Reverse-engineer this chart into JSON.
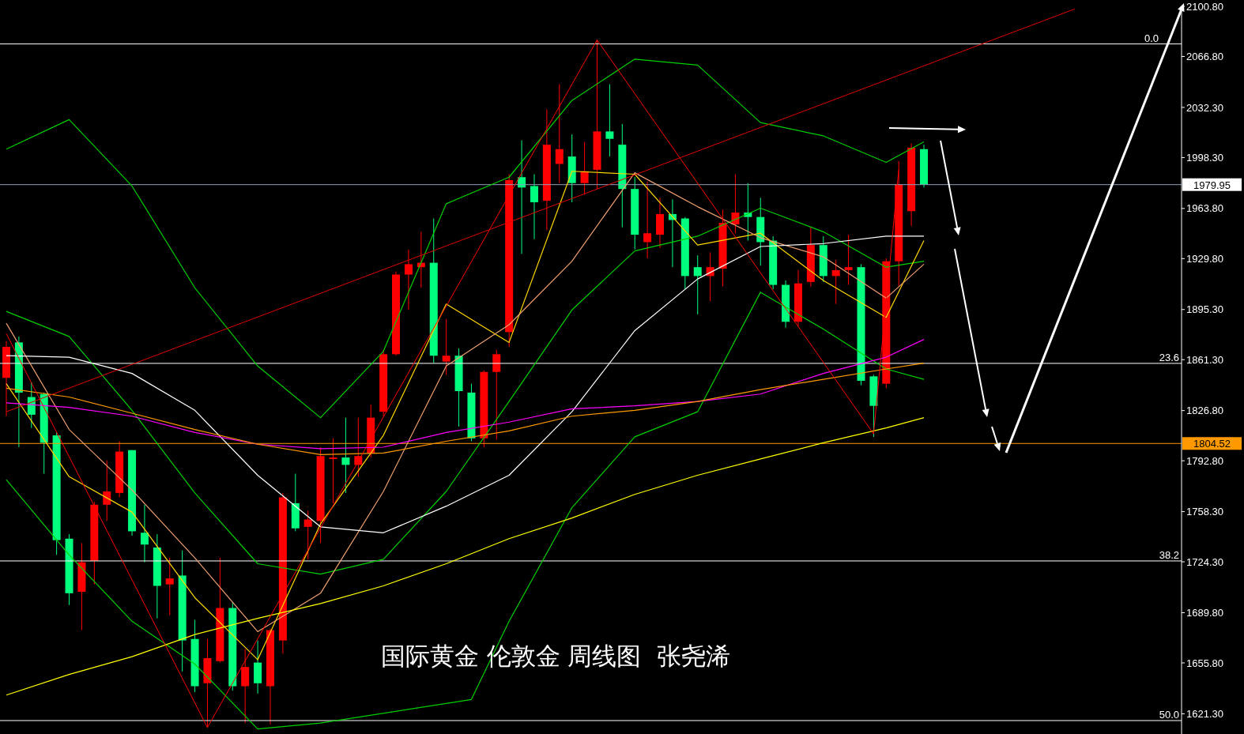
{
  "chart_data": {
    "type": "candlestick",
    "title": "国际黄金 伦敦金 周线图  张尧浠",
    "categories": [
      null,
      null,
      null,
      null,
      null,
      null,
      null,
      null,
      null,
      null,
      null,
      null,
      null,
      null,
      null,
      null,
      null,
      null,
      null,
      null,
      null,
      null,
      null,
      null,
      null,
      null,
      null,
      null,
      null,
      null,
      null,
      null,
      null,
      null,
      null,
      null,
      null,
      null,
      null,
      null,
      null,
      null,
      null,
      null,
      null,
      null,
      null,
      null,
      null,
      null,
      null,
      null,
      null,
      null,
      null,
      null,
      null,
      null,
      null,
      null,
      null,
      null,
      null,
      null,
      null,
      null,
      null,
      null,
      null,
      null,
      null,
      null,
      null,
      null,
      null,
      null,
      null,
      null,
      null,
      null,
      null,
      null,
      null,
      null,
      null,
      null,
      null,
      null,
      null,
      null,
      null,
      null,
      null,
      null
    ],
    "ohlc": [
      [
        1849,
        1874,
        1823,
        1870
      ],
      [
        1873,
        1877,
        1802,
        1839
      ],
      [
        1836,
        1846,
        1815,
        1824
      ],
      [
        1838,
        1839,
        1784,
        1805
      ],
      [
        1810,
        1812,
        1729,
        1739
      ],
      [
        1740,
        1743,
        1695,
        1703
      ],
      [
        1704,
        1737,
        1678,
        1724
      ],
      [
        1725,
        1765,
        1709,
        1763
      ],
      [
        1763,
        1793,
        1752,
        1772
      ],
      [
        1771,
        1806,
        1768,
        1799
      ],
      [
        1800,
        1800,
        1742,
        1745
      ],
      [
        1744,
        1763,
        1724,
        1736
      ],
      [
        1734,
        1743,
        1686,
        1708
      ],
      [
        1709,
        1727,
        1688,
        1713
      ],
      [
        1715,
        1732,
        1650,
        1671
      ],
      [
        1672,
        1685,
        1636,
        1640
      ],
      [
        1642,
        1672,
        1612,
        1659
      ],
      [
        1657,
        1727,
        1656,
        1693
      ],
      [
        1693,
        1697,
        1637,
        1640
      ],
      [
        1640,
        1665,
        1615,
        1653
      ],
      [
        1656,
        1671,
        1635,
        1642
      ],
      [
        1640,
        1679,
        1614,
        1678
      ],
      [
        1671,
        1771,
        1662,
        1768
      ],
      [
        1764,
        1784,
        1745,
        1747
      ],
      [
        1748,
        1759,
        1726,
        1753
      ],
      [
        1752,
        1802,
        1737,
        1796
      ],
      [
        1794,
        1808,
        1764,
        1795
      ],
      [
        1795,
        1822,
        1771,
        1790
      ],
      [
        1790,
        1822,
        1782,
        1796
      ],
      [
        1798,
        1831,
        1795,
        1822
      ],
      [
        1826,
        1868,
        1823,
        1865
      ],
      [
        1865,
        1921,
        1864,
        1919
      ],
      [
        1919,
        1936,
        1895,
        1926
      ],
      [
        1924,
        1948,
        1910,
        1927
      ],
      [
        1927,
        1957,
        1859,
        1864
      ],
      [
        1860,
        1889,
        1851,
        1864
      ],
      [
        1864,
        1869,
        1816,
        1840
      ],
      [
        1839,
        1845,
        1806,
        1808
      ],
      [
        1808,
        1854,
        1802,
        1853
      ],
      [
        1853,
        1868,
        1807,
        1865
      ],
      [
        1880,
        1987,
        1870,
        1983
      ],
      [
        1985,
        2010,
        1933,
        1978
      ],
      [
        1979,
        1987,
        1943,
        1968
      ],
      [
        1969,
        2031,
        1949,
        2007
      ],
      [
        1994,
        2048,
        1981,
        2004
      ],
      [
        1999,
        2014,
        1968,
        1981
      ],
      [
        1981,
        2009,
        1973,
        1989
      ],
      [
        1990,
        2078,
        1977,
        2016
      ],
      [
        2016,
        2048,
        1999,
        2011
      ],
      [
        2007,
        2021,
        1951,
        1977
      ],
      [
        1977,
        1985,
        1936,
        1946
      ],
      [
        1941,
        1982,
        1930,
        1947
      ],
      [
        1946,
        1971,
        1937,
        1960
      ],
      [
        1960,
        1970,
        1924,
        1956
      ],
      [
        1957,
        1958,
        1909,
        1918
      ],
      [
        1924,
        1932,
        1892,
        1918
      ],
      [
        1918,
        1934,
        1901,
        1924
      ],
      [
        1923,
        1963,
        1911,
        1954
      ],
      [
        1953,
        1987,
        1947,
        1961
      ],
      [
        1961,
        1981,
        1942,
        1958
      ],
      [
        1958,
        1971,
        1925,
        1941
      ],
      [
        1942,
        1945,
        1909,
        1912
      ],
      [
        1912,
        1915,
        1883,
        1887
      ],
      [
        1887,
        1922,
        1884,
        1913
      ],
      [
        1914,
        1951,
        1911,
        1939
      ],
      [
        1939,
        1945,
        1914,
        1918
      ],
      [
        1918,
        1929,
        1899,
        1922
      ],
      [
        1922,
        1946,
        1912,
        1924
      ],
      [
        1924,
        1926,
        1844,
        1847
      ],
      [
        1850,
        1851,
        1809,
        1830
      ],
      [
        1845,
        1930,
        1842,
        1928
      ],
      [
        1928,
        1996,
        1911,
        1980
      ],
      [
        1962,
        2008,
        1952,
        2005
      ],
      [
        2004,
        2007,
        1978,
        1980
      ],
      null,
      null,
      null,
      null,
      null,
      null,
      null,
      null,
      null,
      null,
      null,
      null,
      null,
      null,
      null,
      null,
      null,
      null,
      null,
      null
    ],
    "colors": [
      "#ff0000",
      "#00ff7f",
      "#00ff7f",
      "#00ff7f",
      "#00ff7f",
      "#00ff7f",
      "#ff0000",
      "#ff0000",
      "#ff0000",
      "#ff0000",
      "#00ff7f",
      "#00ff7f",
      "#00ff7f",
      "#ff0000",
      "#00ff7f",
      "#00ff7f",
      "#ff0000",
      "#ff0000",
      "#00ff7f",
      "#ff0000",
      "#00ff7f",
      "#ff0000",
      "#ff0000",
      "#00ff7f",
      "#ff0000",
      "#ff0000",
      "#ff0000",
      "#00ff7f",
      "#ff0000",
      "#ff0000",
      "#ff0000",
      "#ff0000",
      "#ff0000",
      "#ff0000",
      "#00ff7f",
      "#ff0000",
      "#00ff7f",
      "#00ff7f",
      "#ff0000",
      "#ff0000",
      "#ff0000",
      "#00ff7f",
      "#00ff7f",
      "#ff0000",
      "#ff0000",
      "#00ff7f",
      "#ff0000",
      "#ff0000",
      "#00ff7f",
      "#00ff7f",
      "#00ff7f",
      "#ff0000",
      "#ff0000",
      "#00ff7f",
      "#00ff7f",
      "#00ff7f",
      "#ff0000",
      "#ff0000",
      "#ff0000",
      "#00ff7f",
      "#00ff7f",
      "#00ff7f",
      "#00ff7f",
      "#ff0000",
      "#ff0000",
      "#00ff7f",
      "#ff0000",
      "#ff0000",
      "#00ff7f",
      "#00ff7f",
      "#ff0000",
      "#ff0000",
      "#ff0000",
      "#00ff7f",
      null,
      null,
      null,
      null,
      null,
      null,
      null,
      null,
      null,
      null,
      null,
      null,
      null,
      null,
      null,
      null,
      null,
      null,
      null,
      null
    ],
    "series": [
      {
        "type": "line",
        "color": "#00d000",
        "values": [
          2004,
          null,
          null,
          null,
          null,
          2024,
          null,
          null,
          null,
          null,
          1979,
          null,
          null,
          null,
          null,
          1910,
          null,
          null,
          null,
          null,
          1857,
          null,
          null,
          null,
          null,
          1822,
          null,
          null,
          null,
          null,
          1867,
          null,
          null,
          null,
          null,
          1967,
          null,
          null,
          null,
          null,
          1985,
          null,
          null,
          null,
          null,
          2037,
          null,
          null,
          null,
          null,
          2065,
          null,
          null,
          null,
          null,
          2061,
          null,
          null,
          null,
          null,
          2022,
          null,
          null,
          null,
          null,
          2013,
          null,
          null,
          null,
          null,
          1995,
          null,
          null,
          2009,
          null,
          null,
          null,
          null,
          null,
          null,
          null,
          null,
          null,
          null,
          null,
          null,
          null,
          null,
          null,
          null,
          null,
          null,
          null,
          null
        ]
      },
      {
        "type": "line",
        "color": "#00d000",
        "values": [
          1894,
          null,
          null,
          null,
          null,
          1877,
          null,
          null,
          null,
          null,
          1827,
          null,
          null,
          null,
          null,
          1771,
          null,
          null,
          null,
          null,
          1723,
          null,
          null,
          null,
          null,
          1716,
          null,
          null,
          null,
          null,
          1726,
          null,
          null,
          null,
          null,
          1772,
          null,
          null,
          null,
          null,
          1833,
          null,
          null,
          null,
          null,
          1895,
          null,
          null,
          null,
          null,
          1935,
          null,
          null,
          null,
          null,
          1945,
          null,
          null,
          null,
          null,
          1964,
          null,
          null,
          null,
          null,
          1948,
          null,
          null,
          null,
          null,
          1924,
          null,
          null,
          1928,
          null,
          null,
          null,
          null,
          null,
          null,
          null,
          null,
          null,
          null,
          null,
          null,
          null,
          null,
          null,
          null,
          null,
          null,
          null,
          null
        ]
      },
      {
        "type": "line",
        "color": "#00d000",
        "values": [
          1780,
          null,
          null,
          null,
          null,
          1729,
          null,
          null,
          null,
          null,
          1684,
          null,
          null,
          null,
          null,
          1655,
          null,
          null,
          null,
          null,
          1611,
          null,
          null,
          null,
          null,
          1615,
          null,
          null,
          null,
          null,
          null,
          null,
          null,
          null,
          null,
          null,
          null,
          1631,
          null,
          null,
          1684,
          null,
          null,
          null,
          null,
          1761,
          null,
          null,
          null,
          null,
          1809,
          null,
          null,
          null,
          null,
          1826,
          null,
          null,
          null,
          null,
          1907,
          null,
          null,
          null,
          null,
          1882,
          null,
          null,
          null,
          null,
          1855,
          null,
          null,
          1848,
          null,
          null,
          null,
          null,
          null,
          null,
          null,
          null,
          null,
          null,
          null,
          null,
          null,
          null,
          null,
          null,
          null,
          null,
          null,
          null
        ]
      },
      {
        "type": "line",
        "color": "#ffd700",
        "values": [
          1845,
          null,
          null,
          null,
          null,
          1782,
          null,
          null,
          null,
          null,
          1758,
          null,
          null,
          null,
          null,
          1700,
          null,
          null,
          null,
          null,
          1658,
          null,
          null,
          null,
          null,
          1750,
          null,
          null,
          null,
          null,
          1810,
          null,
          null,
          null,
          null,
          1899,
          null,
          null,
          null,
          null,
          1873,
          null,
          null,
          null,
          null,
          1989,
          null,
          null,
          null,
          null,
          1987,
          null,
          null,
          null,
          null,
          1939,
          null,
          null,
          null,
          null,
          1947,
          null,
          null,
          null,
          null,
          1915,
          null,
          null,
          null,
          null,
          1890,
          null,
          null,
          1942,
          null,
          null,
          null,
          null,
          null,
          null,
          null,
          null,
          null,
          null,
          null,
          null,
          null,
          null,
          null,
          null,
          null,
          null,
          null,
          null
        ]
      },
      {
        "type": "line",
        "color": "#f0a070",
        "values": [
          1886,
          null,
          null,
          null,
          null,
          1814,
          null,
          null,
          null,
          null,
          1773,
          null,
          null,
          null,
          null,
          1727,
          null,
          null,
          null,
          null,
          1677,
          null,
          null,
          null,
          null,
          1703,
          null,
          null,
          null,
          null,
          1772,
          null,
          null,
          null,
          null,
          1857,
          null,
          null,
          null,
          null,
          1885,
          null,
          null,
          null,
          null,
          1928,
          null,
          null,
          null,
          null,
          1988,
          null,
          null,
          null,
          null,
          1965,
          null,
          null,
          null,
          null,
          1944,
          null,
          null,
          null,
          null,
          1931,
          null,
          null,
          null,
          null,
          1903,
          null,
          null,
          1926,
          null,
          null,
          null,
          null,
          null,
          null,
          null,
          null,
          null,
          null,
          null,
          null,
          null,
          null,
          null,
          null,
          null,
          null,
          null,
          null
        ]
      },
      {
        "type": "line",
        "color": "#ffffff",
        "values": [
          1864,
          null,
          null,
          null,
          null,
          1863,
          null,
          null,
          null,
          null,
          1852,
          null,
          null,
          null,
          null,
          1827,
          null,
          null,
          null,
          null,
          1783,
          null,
          null,
          null,
          null,
          1748,
          null,
          null,
          null,
          null,
          1744,
          null,
          null,
          null,
          null,
          1762,
          null,
          null,
          null,
          null,
          1783,
          null,
          null,
          null,
          null,
          1826,
          null,
          null,
          null,
          null,
          1881,
          null,
          null,
          null,
          null,
          1916,
          null,
          null,
          null,
          null,
          1938,
          null,
          null,
          null,
          null,
          1940,
          null,
          null,
          null,
          null,
          1945,
          null,
          null,
          1945,
          null,
          null,
          null,
          null,
          null,
          null,
          null,
          null,
          null,
          null,
          null,
          null,
          null,
          null,
          null,
          null,
          null,
          null,
          null,
          null
        ]
      },
      {
        "type": "line",
        "color": "#ff00ff",
        "values": [
          1832,
          null,
          null,
          null,
          null,
          1829,
          null,
          null,
          null,
          null,
          1823,
          null,
          null,
          null,
          null,
          1812,
          null,
          null,
          null,
          null,
          1804,
          null,
          null,
          null,
          null,
          1801,
          null,
          null,
          null,
          null,
          1802,
          null,
          null,
          null,
          null,
          1812,
          null,
          null,
          null,
          null,
          1819,
          null,
          null,
          null,
          null,
          1828,
          null,
          null,
          null,
          null,
          1830,
          null,
          null,
          null,
          null,
          1833,
          null,
          null,
          null,
          null,
          1838,
          null,
          null,
          null,
          null,
          1852,
          null,
          null,
          null,
          null,
          1863,
          null,
          null,
          1875,
          null,
          null,
          null,
          null,
          null,
          null,
          null,
          null,
          null,
          null,
          null,
          null,
          null,
          null,
          null,
          null,
          null,
          null,
          null,
          null
        ]
      },
      {
        "type": "line",
        "color": "#ff9900",
        "values": [
          1842,
          null,
          null,
          null,
          null,
          1836,
          null,
          null,
          null,
          null,
          1825,
          null,
          null,
          null,
          null,
          1814,
          null,
          null,
          null,
          null,
          1804,
          null,
          null,
          null,
          null,
          1797,
          null,
          null,
          null,
          null,
          1798,
          null,
          null,
          null,
          null,
          1806,
          null,
          null,
          null,
          null,
          1813,
          null,
          null,
          null,
          null,
          1823,
          null,
          null,
          null,
          null,
          1827,
          null,
          null,
          null,
          null,
          1833,
          null,
          null,
          null,
          null,
          1841,
          null,
          null,
          null,
          null,
          1848,
          null,
          null,
          null,
          null,
          1855,
          null,
          null,
          1859,
          null,
          null,
          null,
          null,
          null,
          null,
          null,
          null,
          null,
          null,
          null,
          null,
          null,
          null,
          null,
          null,
          null,
          null,
          null,
          null
        ]
      },
      {
        "type": "line",
        "color": "#ffff00",
        "values": [
          1634,
          null,
          null,
          null,
          null,
          1648,
          null,
          null,
          null,
          null,
          1660,
          null,
          null,
          null,
          null,
          1675,
          null,
          null,
          null,
          null,
          1686,
          null,
          null,
          null,
          null,
          1696,
          null,
          null,
          null,
          null,
          1708,
          null,
          null,
          null,
          null,
          1723,
          null,
          null,
          null,
          null,
          1740,
          null,
          null,
          null,
          null,
          1754,
          null,
          null,
          null,
          null,
          1770,
          null,
          null,
          null,
          null,
          1783,
          null,
          null,
          null,
          null,
          1794,
          null,
          null,
          null,
          null,
          1805,
          null,
          null,
          null,
          null,
          1815,
          null,
          null,
          1822,
          null,
          null,
          null,
          null,
          null,
          null,
          null,
          null,
          null,
          null,
          null,
          null,
          null,
          null,
          null,
          null,
          null,
          null,
          null,
          null
        ]
      },
      {
        "type": "line",
        "color": "#ff0000",
        "values": [
          1879,
          null,
          null,
          null,
          null,
          null,
          null,
          null,
          null,
          null,
          null,
          null,
          null,
          null,
          null,
          null,
          1612,
          null,
          null,
          null,
          null,
          null,
          null,
          null,
          null,
          null,
          null,
          null,
          null,
          null,
          null,
          null,
          null,
          null,
          null,
          null,
          null,
          null,
          null,
          null,
          null,
          null,
          null,
          null,
          null,
          null,
          null,
          2078,
          null,
          null,
          null,
          null,
          null,
          null,
          null,
          null,
          null,
          null,
          null,
          null,
          null,
          null,
          null,
          null,
          null,
          null,
          null,
          null,
          null,
          1811,
          null,
          1990,
          null,
          null,
          null,
          null,
          null,
          null,
          null,
          null,
          null,
          null,
          null,
          null,
          null,
          null,
          null,
          null,
          null,
          null,
          null,
          null,
          null,
          null
        ]
      },
      {
        "type": "line",
        "color": "#e00000",
        "values": [
          1826,
          null,
          null,
          null,
          null,
          null,
          null,
          null,
          null,
          null,
          null,
          null,
          null,
          null,
          null,
          null,
          null,
          null,
          null,
          null,
          null,
          null,
          null,
          null,
          null,
          null,
          null,
          null,
          null,
          null,
          null,
          null,
          null,
          null,
          null,
          null,
          null,
          null,
          null,
          null,
          null,
          null,
          null,
          null,
          null,
          null,
          null,
          null,
          null,
          null,
          null,
          null,
          null,
          null,
          null,
          null,
          null,
          null,
          null,
          null,
          null,
          null,
          null,
          null,
          null,
          null,
          null,
          null,
          null,
          null,
          null,
          null,
          null,
          null,
          null,
          null,
          null,
          null,
          null,
          null,
          null,
          null,
          null,
          null,
          null,
          2099,
          null,
          null,
          null,
          null,
          null,
          null,
          null,
          null
        ]
      }
    ],
    "ylim": [
      1607.6,
      2100.8
    ],
    "yticks": [
      {
        "value": 2100.8,
        "label": "2100.80"
      },
      {
        "value": 2066.8,
        "label": "2066.80"
      },
      {
        "value": 2032.3,
        "label": "2032.30"
      },
      {
        "value": 1998.3,
        "label": "1998.30"
      },
      {
        "value": 1963.8,
        "label": "1963.80"
      },
      {
        "value": 1929.8,
        "label": "1929.80"
      },
      {
        "value": 1895.3,
        "label": "1895.30"
      },
      {
        "value": 1861.3,
        "label": "1861.30"
      },
      {
        "value": 1826.8,
        "label": "1826.80"
      },
      {
        "value": 1792.8,
        "label": "1792.80"
      },
      {
        "value": 1758.3,
        "label": "1758.30"
      },
      {
        "value": 1724.3,
        "label": "1724.30"
      },
      {
        "value": 1689.8,
        "label": "1689.80"
      },
      {
        "value": 1655.8,
        "label": "1655.80"
      },
      {
        "value": 1621.3,
        "label": "1621.30"
      }
    ],
    "tick_labels": "y",
    "ref_lines": [
      {
        "axis": "y",
        "value": 2075.3,
        "color": "#ffffff"
      },
      {
        "axis": "y",
        "value": 1858.8,
        "color": "#ffffff"
      },
      {
        "axis": "y",
        "value": 1724.9,
        "color": "#ffffff"
      },
      {
        "axis": "y",
        "value": 1616.7,
        "color": "#ffffff"
      },
      {
        "axis": "y",
        "value": 1979.95,
        "label": "1979.95",
        "color": "#8ea0bc"
      },
      {
        "axis": "y",
        "value": 1804.52,
        "label": "1804.52",
        "color": "#ff9900"
      }
    ],
    "annotations": [
      "0.0",
      "23.6",
      "38.2",
      "50.0"
    ]
  }
}
